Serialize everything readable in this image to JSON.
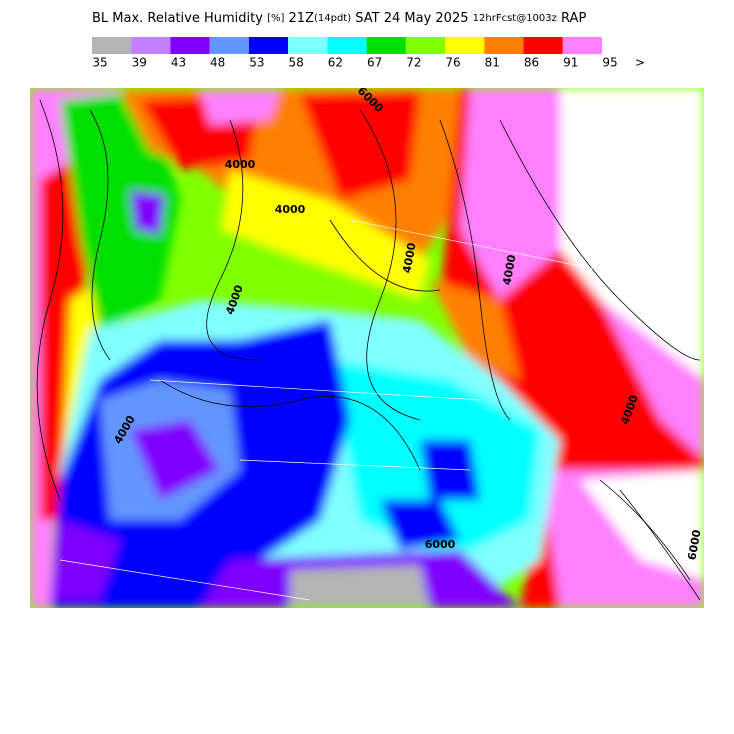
{
  "title": {
    "main": "BL Max. Relative Humidity",
    "units": "[%]",
    "time": "21Z",
    "local": "(14pdt)",
    "date": "SAT 24 May 2025",
    "forecast": "12hrFcst@1003z",
    "model": "RAP"
  },
  "legend": {
    "labels": [
      35,
      39,
      43,
      48,
      53,
      58,
      62,
      67,
      72,
      76,
      81,
      86,
      91,
      95
    ],
    "colors": [
      "#b4b4b4",
      "#c080ff",
      "#8000ff",
      "#6496ff",
      "#0000ff",
      "#80ffff",
      "#00ffff",
      "#00e000",
      "#80ff00",
      "#ffff00",
      "#ff8000",
      "#ff0000",
      "#ff80ff"
    ],
    "overflow": ">"
  },
  "contour_labels": [
    "4000",
    "4000",
    "4000",
    "4000",
    "4000",
    "4000",
    "4000",
    "6000",
    "6000",
    "6000"
  ]
}
